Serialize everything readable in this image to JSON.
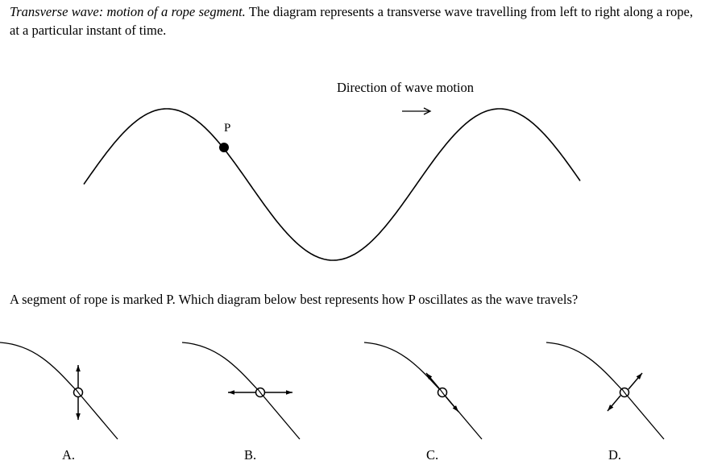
{
  "intro": {
    "title": "Transverse wave: motion of a rope segment.",
    "text": "The diagram represents a transverse wave travelling from left to right along a rope, at a particular instant of time."
  },
  "diagram": {
    "direction_label": "Direction of wave motion",
    "point_label": "P"
  },
  "question": "A segment of rope is marked P. Which diagram below best represents how P oscillates as the wave travels?",
  "options": [
    {
      "label": "A.",
      "motion": "vertical"
    },
    {
      "label": "B.",
      "motion": "horizontal"
    },
    {
      "label": "C.",
      "motion": "along the rope"
    },
    {
      "label": "D.",
      "motion": "perpendicular to the rope"
    }
  ]
}
